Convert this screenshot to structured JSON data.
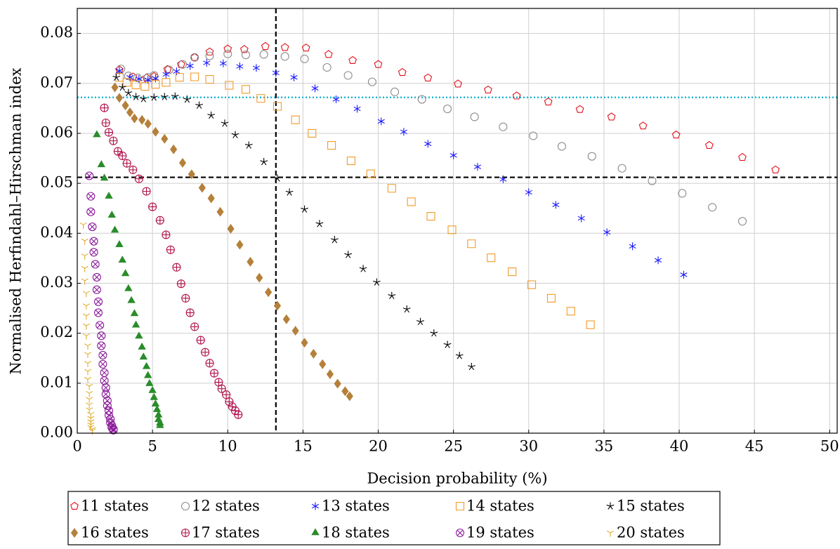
{
  "chart_data": {
    "type": "scatter",
    "x_label": "Decision probability (%)",
    "y_label": "Normalised Herfindahl–Hirschman index",
    "xlim": [
      0,
      50.5
    ],
    "ylim": [
      0,
      0.085
    ],
    "xticks": [
      0,
      5,
      10,
      15,
      20,
      25,
      30,
      35,
      40,
      45,
      50
    ],
    "yticks": [
      {
        "value": 0,
        "label": "0.00"
      },
      0.01,
      0.02,
      0.03,
      0.04,
      0.05,
      0.06,
      0.07,
      0.08
    ],
    "grid": true,
    "reference_lines": [
      {
        "axis": "y",
        "value": 0.0512,
        "color": "#000000",
        "style": "dashed"
      },
      {
        "axis": "x",
        "value": 13.2,
        "color": "#000000",
        "style": "dashed"
      },
      {
        "axis": "y",
        "value": 0.0672,
        "color": "#1fb4d6",
        "style": "dotted"
      }
    ],
    "series": [
      {
        "name": "11 states",
        "color": "#e3101a",
        "marker": "pentagon",
        "x": [
          2.8,
          3.7,
          4.6,
          5.1,
          6.0,
          6.9,
          7.8,
          8.8,
          10.0,
          11.1,
          12.5,
          13.8,
          15.2,
          16.7,
          18.3,
          20.0,
          21.6,
          23.3,
          25.3,
          27.3,
          29.2,
          31.3,
          33.4,
          35.5,
          37.6,
          39.8,
          42.0,
          44.2,
          46.4
        ],
        "values": [
          0.0727,
          0.0713,
          0.0711,
          0.0714,
          0.0728,
          0.0738,
          0.0752,
          0.0763,
          0.0769,
          0.0768,
          0.0774,
          0.0772,
          0.0771,
          0.0758,
          0.0746,
          0.0738,
          0.0722,
          0.0711,
          0.0699,
          0.0687,
          0.0675,
          0.0663,
          0.0648,
          0.0633,
          0.0615,
          0.0597,
          0.0576,
          0.0552,
          0.0527
        ]
      },
      {
        "name": "12 states",
        "color": "#8c8c8c",
        "marker": "circle",
        "x": [
          2.9,
          3.4,
          4.0,
          4.7,
          5.1,
          6.1,
          7.0,
          7.8,
          8.8,
          10.0,
          11.2,
          12.4,
          13.8,
          15.1,
          16.6,
          18.0,
          19.6,
          21.1,
          22.9,
          24.6,
          26.4,
          28.3,
          30.3,
          32.2,
          34.2,
          36.2,
          38.2,
          40.2,
          42.2,
          44.2
        ],
        "values": [
          0.0729,
          0.0715,
          0.0711,
          0.0712,
          0.0716,
          0.0727,
          0.0738,
          0.0752,
          0.0755,
          0.0759,
          0.0757,
          0.0758,
          0.0754,
          0.0749,
          0.0732,
          0.0716,
          0.0703,
          0.0683,
          0.0668,
          0.0649,
          0.0633,
          0.0613,
          0.0595,
          0.0574,
          0.0554,
          0.053,
          0.0505,
          0.048,
          0.0452,
          0.0424
        ]
      },
      {
        "name": "13 states",
        "color": "#1a1aff",
        "marker": "asterisk",
        "x": [
          2.8,
          3.5,
          4.1,
          4.7,
          5.2,
          5.9,
          6.6,
          7.5,
          8.6,
          9.7,
          10.8,
          11.9,
          13.2,
          14.4,
          15.8,
          17.2,
          18.6,
          20.2,
          21.7,
          23.3,
          25.0,
          26.6,
          28.3,
          30.0,
          31.8,
          33.5,
          35.2,
          36.9,
          38.6,
          40.3
        ],
        "values": [
          0.0725,
          0.0712,
          0.0709,
          0.0707,
          0.071,
          0.0718,
          0.0724,
          0.0735,
          0.0741,
          0.074,
          0.0734,
          0.0731,
          0.0721,
          0.0712,
          0.069,
          0.0668,
          0.0649,
          0.0624,
          0.0603,
          0.0579,
          0.0556,
          0.0533,
          0.0508,
          0.0482,
          0.0457,
          0.043,
          0.0402,
          0.0374,
          0.0346,
          0.0317
        ]
      },
      {
        "name": "14 states",
        "color": "#f39a2a",
        "marker": "square",
        "x": [
          2.8,
          3.3,
          3.9,
          4.5,
          5.2,
          5.9,
          6.8,
          7.8,
          8.8,
          10.1,
          11.2,
          12.2,
          13.3,
          14.5,
          15.6,
          16.9,
          18.2,
          19.5,
          20.9,
          22.2,
          23.5,
          24.9,
          26.2,
          27.5,
          28.9,
          30.2,
          31.5,
          32.8,
          34.1
        ],
        "values": [
          0.0712,
          0.0702,
          0.0697,
          0.0694,
          0.0698,
          0.0702,
          0.0712,
          0.0713,
          0.0708,
          0.0696,
          0.0688,
          0.067,
          0.0654,
          0.0627,
          0.06,
          0.0576,
          0.0545,
          0.0519,
          0.049,
          0.0463,
          0.0434,
          0.0407,
          0.0379,
          0.0351,
          0.0323,
          0.0297,
          0.027,
          0.0244,
          0.0217
        ]
      },
      {
        "name": "15 states",
        "color": "#000000",
        "marker": "star",
        "x": [
          2.6,
          3.0,
          3.4,
          3.9,
          4.4,
          5.1,
          5.8,
          6.5,
          7.3,
          8.1,
          8.9,
          9.8,
          10.5,
          11.4,
          12.4,
          13.3,
          14.1,
          15.1,
          16.1,
          17.1,
          18.0,
          19.0,
          19.9,
          20.9,
          21.9,
          22.8,
          23.7,
          24.6,
          25.4,
          26.2
        ],
        "values": [
          0.0712,
          0.0692,
          0.0681,
          0.0673,
          0.0669,
          0.0672,
          0.0673,
          0.0674,
          0.0668,
          0.0656,
          0.0636,
          0.062,
          0.0597,
          0.0576,
          0.0543,
          0.051,
          0.0482,
          0.0448,
          0.0419,
          0.0387,
          0.0357,
          0.0329,
          0.0302,
          0.0275,
          0.0248,
          0.0223,
          0.02,
          0.0177,
          0.0155,
          0.0133
        ]
      },
      {
        "name": "16 states",
        "color": "#b5803a",
        "marker": "diamond",
        "x": [
          2.5,
          2.8,
          3.2,
          3.5,
          3.8,
          4.3,
          4.7,
          5.2,
          5.8,
          6.4,
          7.0,
          7.6,
          8.3,
          8.9,
          9.5,
          10.2,
          10.8,
          11.5,
          12.1,
          12.7,
          13.3,
          13.9,
          14.5,
          15.1,
          15.7,
          16.3,
          16.8,
          17.3,
          17.8,
          18.1
        ],
        "values": [
          0.0692,
          0.0671,
          0.0656,
          0.0642,
          0.063,
          0.0627,
          0.0619,
          0.0603,
          0.0589,
          0.0568,
          0.0541,
          0.0518,
          0.0491,
          0.047,
          0.0443,
          0.0409,
          0.0377,
          0.0343,
          0.0311,
          0.0282,
          0.0255,
          0.0228,
          0.0205,
          0.0181,
          0.0159,
          0.0138,
          0.0118,
          0.0099,
          0.0084,
          0.0074
        ]
      },
      {
        "name": "17 states",
        "color": "#b0104a",
        "marker": "circle-plus",
        "x": [
          1.8,
          1.9,
          2.1,
          2.4,
          2.7,
          3.0,
          3.3,
          3.7,
          4.1,
          4.6,
          5.0,
          5.5,
          5.9,
          6.2,
          6.6,
          6.9,
          7.2,
          7.5,
          7.8,
          8.2,
          8.5,
          8.8,
          9.1,
          9.4,
          9.6,
          9.9,
          10.1,
          10.3,
          10.5,
          10.7
        ],
        "values": [
          0.0651,
          0.0621,
          0.0602,
          0.0585,
          0.0564,
          0.0555,
          0.054,
          0.0527,
          0.0509,
          0.0484,
          0.0453,
          0.0426,
          0.0397,
          0.0367,
          0.0332,
          0.0299,
          0.027,
          0.0241,
          0.0213,
          0.0186,
          0.0162,
          0.014,
          0.012,
          0.0102,
          0.0089,
          0.0077,
          0.0063,
          0.0053,
          0.0045,
          0.0037
        ]
      },
      {
        "name": "18 states",
        "color": "#2a8c2a",
        "marker": "triangle",
        "x": [
          1.3,
          1.6,
          1.8,
          2.1,
          2.3,
          2.5,
          2.8,
          3.0,
          3.2,
          3.4,
          3.6,
          3.8,
          3.9,
          4.1,
          4.3,
          4.4,
          4.6,
          4.7,
          4.8,
          5.0,
          5.1,
          5.2,
          5.3,
          5.4,
          5.4,
          5.5,
          5.5
        ],
        "values": [
          0.0597,
          0.0537,
          0.051,
          0.0474,
          0.0436,
          0.0406,
          0.0377,
          0.0346,
          0.0319,
          0.0289,
          0.0265,
          0.0239,
          0.0216,
          0.0194,
          0.0172,
          0.0152,
          0.0133,
          0.0115,
          0.0099,
          0.0085,
          0.0071,
          0.0058,
          0.0047,
          0.0036,
          0.0027,
          0.002,
          0.0015
        ]
      },
      {
        "name": "19 states",
        "color": "#8b1a9a",
        "marker": "circle-x",
        "x": [
          0.8,
          0.9,
          0.9,
          1.0,
          1.1,
          1.1,
          1.2,
          1.3,
          1.3,
          1.4,
          1.4,
          1.5,
          1.6,
          1.6,
          1.7,
          1.7,
          1.8,
          1.8,
          1.9,
          1.9,
          2.0,
          2.0,
          2.1,
          2.1,
          2.2,
          2.2,
          2.3,
          2.3,
          2.4,
          2.4
        ],
        "values": [
          0.0515,
          0.0474,
          0.0443,
          0.0413,
          0.0384,
          0.0362,
          0.0338,
          0.0312,
          0.0287,
          0.0263,
          0.0241,
          0.0216,
          0.0195,
          0.0175,
          0.0156,
          0.0138,
          0.0121,
          0.0105,
          0.0091,
          0.0078,
          0.0065,
          0.0055,
          0.0045,
          0.0036,
          0.0028,
          0.0021,
          0.0015,
          0.0011,
          0.0008,
          0.0006
        ]
      },
      {
        "name": "20 states",
        "color": "#e0ae30",
        "marker": "tri",
        "x": [
          0.4,
          0.5,
          0.5,
          0.5,
          0.5,
          0.6,
          0.6,
          0.6,
          0.6,
          0.6,
          0.7,
          0.7,
          0.7,
          0.7,
          0.7,
          0.8,
          0.8,
          0.8,
          0.8,
          0.8,
          0.9,
          0.9,
          0.9,
          0.9,
          0.9,
          1.0,
          1.0
        ],
        "values": [
          0.0417,
          0.0385,
          0.0355,
          0.033,
          0.0305,
          0.028,
          0.0255,
          0.0235,
          0.0215,
          0.0195,
          0.0175,
          0.0158,
          0.014,
          0.0124,
          0.0108,
          0.0094,
          0.008,
          0.0068,
          0.0057,
          0.0047,
          0.0038,
          0.003,
          0.0023,
          0.0017,
          0.0012,
          0.0008,
          0.0005
        ]
      }
    ]
  }
}
